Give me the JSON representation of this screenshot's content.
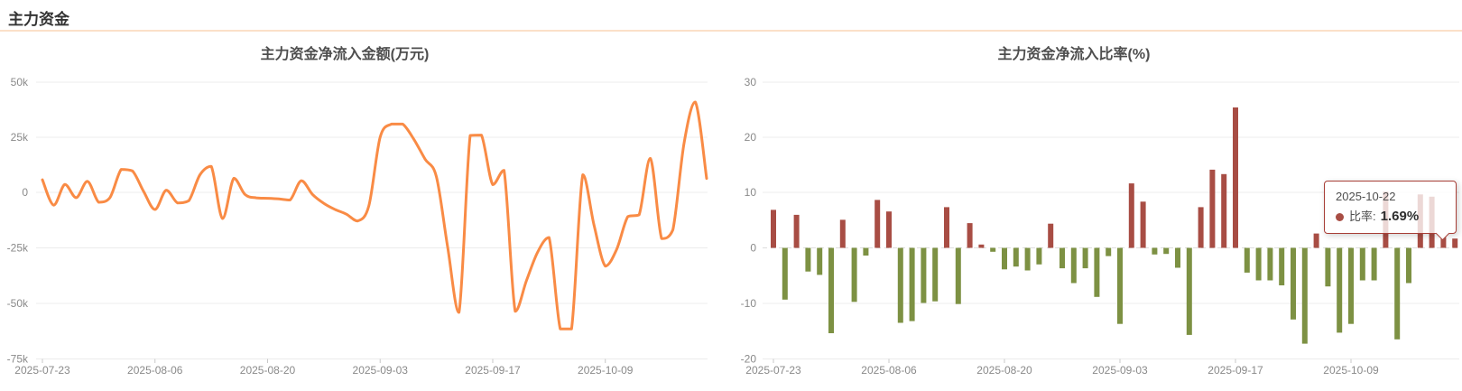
{
  "page": {
    "header_title": "主力资金",
    "colors": {
      "header_text": "#333333",
      "divider": "#fbe0c8",
      "background": "#ffffff"
    }
  },
  "axis_style": {
    "label_color": "#8a8a8a",
    "grid_color": "#ececec",
    "zero_line_color": "#dddddd",
    "tick_color": "#c8c8c8"
  },
  "tooltip": {
    "date": "2025-10-22",
    "series_label_text": "比率:",
    "value_text": "1.69%",
    "marker_color": "#a84d44",
    "border_color": "#a73e36"
  },
  "chart_data": [
    {
      "type": "line",
      "name": "main-capital-net-inflow-amount",
      "title": "主力资金净流入金额(万元)",
      "series_name": "净流入金额",
      "color": "#f98b45",
      "line_width": 3,
      "smooth": true,
      "ylabel": "万元",
      "ylim": [
        -75000,
        50000
      ],
      "y_tick_labels": [
        "50k",
        "25k",
        "0",
        "-25k",
        "-50k",
        "-75k"
      ],
      "y_tick_values": [
        50000,
        25000,
        0,
        -25000,
        -50000,
        -75000
      ],
      "x_tick_labels": [
        "2025-07-23",
        "2025-08-06",
        "2025-08-20",
        "2025-09-03",
        "2025-09-17",
        "2025-10-09"
      ],
      "x_tick_indices": [
        0,
        10,
        20,
        30,
        40,
        50
      ],
      "grid": true,
      "legend": "none",
      "x": [
        "2025-07-23",
        "2025-07-24",
        "2025-07-25",
        "2025-07-28",
        "2025-07-29",
        "2025-07-30",
        "2025-07-31",
        "2025-08-01",
        "2025-08-04",
        "2025-08-05",
        "2025-08-06",
        "2025-08-07",
        "2025-08-08",
        "2025-08-11",
        "2025-08-12",
        "2025-08-13",
        "2025-08-14",
        "2025-08-15",
        "2025-08-18",
        "2025-08-19",
        "2025-08-20",
        "2025-08-21",
        "2025-08-22",
        "2025-08-25",
        "2025-08-26",
        "2025-08-27",
        "2025-08-28",
        "2025-08-29",
        "2025-09-01",
        "2025-09-02",
        "2025-09-03",
        "2025-09-04",
        "2025-09-05",
        "2025-09-08",
        "2025-09-09",
        "2025-09-10",
        "2025-09-11",
        "2025-09-12",
        "2025-09-15",
        "2025-09-16",
        "2025-09-17",
        "2025-09-18",
        "2025-09-19",
        "2025-09-22",
        "2025-09-23",
        "2025-09-24",
        "2025-09-25",
        "2025-09-26",
        "2025-09-29",
        "2025-09-30",
        "2025-10-09",
        "2025-10-10",
        "2025-10-13",
        "2025-10-14",
        "2025-10-15",
        "2025-10-16",
        "2025-10-17",
        "2025-10-20",
        "2025-10-21",
        "2025-10-22"
      ],
      "values": [
        5700,
        -5800,
        3600,
        -2400,
        5000,
        -4500,
        -2400,
        10400,
        9700,
        300,
        -7800,
        1000,
        -4800,
        -3800,
        8000,
        11800,
        -11900,
        6400,
        -1000,
        -2500,
        -2700,
        -3000,
        -3500,
        5300,
        -1000,
        -5000,
        -7800,
        -9900,
        -13000,
        -6000,
        25000,
        31000,
        31000,
        24000,
        15000,
        7000,
        -25000,
        -54500,
        25800,
        26000,
        3500,
        10000,
        -54000,
        -40000,
        -27000,
        -20500,
        -62000,
        -62000,
        8000,
        -15000,
        -33500,
        -26000,
        -11000,
        -10200,
        15400,
        -21000,
        -17000,
        22600,
        41000,
        6300
      ]
    },
    {
      "type": "bar",
      "name": "main-capital-net-inflow-ratio",
      "title": "主力资金净流入比率(%)",
      "series_name": "比率",
      "color_positive": "#a84d44",
      "color_negative": "#7d9143",
      "ylabel": "%",
      "ylim": [
        -20,
        30
      ],
      "y_tick_labels": [
        "30",
        "20",
        "10",
        "0",
        "-10",
        "-20"
      ],
      "y_tick_values": [
        30,
        20,
        10,
        0,
        -10,
        -20
      ],
      "x_tick_labels": [
        "2025-07-23",
        "2025-08-06",
        "2025-08-20",
        "2025-09-03",
        "2025-09-17",
        "2025-10-09"
      ],
      "x_tick_indices": [
        0,
        10,
        20,
        30,
        40,
        50
      ],
      "grid": true,
      "legend": "none",
      "zero_line_dashed": true,
      "hover_index": 59,
      "x": [
        "2025-07-23",
        "2025-07-24",
        "2025-07-25",
        "2025-07-28",
        "2025-07-29",
        "2025-07-30",
        "2025-07-31",
        "2025-08-01",
        "2025-08-04",
        "2025-08-05",
        "2025-08-06",
        "2025-08-07",
        "2025-08-08",
        "2025-08-11",
        "2025-08-12",
        "2025-08-13",
        "2025-08-14",
        "2025-08-15",
        "2025-08-18",
        "2025-08-19",
        "2025-08-20",
        "2025-08-21",
        "2025-08-22",
        "2025-08-25",
        "2025-08-26",
        "2025-08-27",
        "2025-08-28",
        "2025-08-29",
        "2025-09-01",
        "2025-09-02",
        "2025-09-03",
        "2025-09-04",
        "2025-09-05",
        "2025-09-08",
        "2025-09-09",
        "2025-09-10",
        "2025-09-11",
        "2025-09-12",
        "2025-09-15",
        "2025-09-16",
        "2025-09-17",
        "2025-09-18",
        "2025-09-19",
        "2025-09-22",
        "2025-09-23",
        "2025-09-24",
        "2025-09-25",
        "2025-09-26",
        "2025-09-29",
        "2025-09-30",
        "2025-10-09",
        "2025-10-10",
        "2025-10-13",
        "2025-10-14",
        "2025-10-15",
        "2025-10-16",
        "2025-10-17",
        "2025-10-20",
        "2025-10-21",
        "2025-10-22"
      ],
      "values": [
        6.9,
        -9.4,
        6.0,
        -4.3,
        -4.9,
        -15.5,
        5.1,
        -9.8,
        -1.4,
        8.7,
        6.6,
        -13.6,
        -13.3,
        -10.0,
        -9.7,
        7.4,
        -10.2,
        4.5,
        0.6,
        -0.7,
        -3.9,
        -3.4,
        -4.1,
        -3.0,
        4.4,
        -3.7,
        -6.4,
        -3.7,
        -8.9,
        -1.5,
        -13.8,
        11.7,
        8.4,
        -1.2,
        -1.1,
        -3.6,
        -15.8,
        7.4,
        14.2,
        13.4,
        25.5,
        -4.5,
        -5.9,
        -5.9,
        -6.8,
        -13.0,
        -17.4,
        2.6,
        -7.0,
        -15.4,
        -13.8,
        -5.9,
        -5.9,
        10.2,
        -16.6,
        -6.4,
        9.7,
        9.3,
        2.1,
        1.69
      ]
    }
  ]
}
